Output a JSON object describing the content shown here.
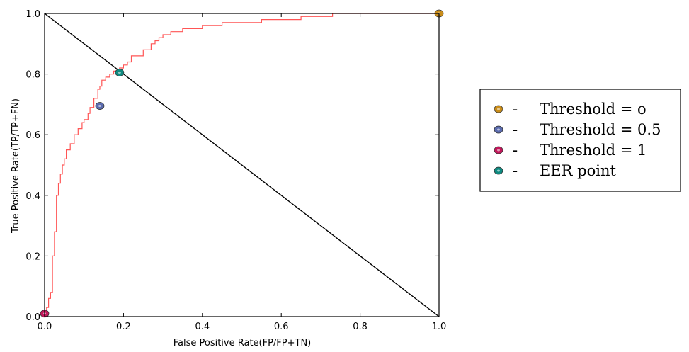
{
  "chart_data": {
    "type": "line",
    "title": "",
    "xlabel": "False Positive Rate(FP/FP+TN)",
    "ylabel": "True Positive Rate(TP/TP+FN)",
    "xlim": [
      0.0,
      1.0
    ],
    "ylim": [
      0.0,
      1.0
    ],
    "xticks": [
      "0.0",
      "0.2",
      "0.4",
      "0.6",
      "0.8",
      "1.0"
    ],
    "yticks": [
      "0.0",
      "0.2",
      "0.4",
      "0.6",
      "0.8",
      "1.0"
    ],
    "grid": false,
    "series": [
      {
        "color": "#ff5555",
        "x": [
          0.0,
          0.005,
          0.005,
          0.01,
          0.01,
          0.015,
          0.015,
          0.02,
          0.02,
          0.025,
          0.025,
          0.03,
          0.03,
          0.035,
          0.035,
          0.04,
          0.04,
          0.045,
          0.045,
          0.05,
          0.05,
          0.055,
          0.055,
          0.06,
          0.06,
          0.065,
          0.065,
          0.075,
          0.075,
          0.085,
          0.085,
          0.095,
          0.095,
          0.1,
          0.1,
          0.11,
          0.11,
          0.115,
          0.115,
          0.125,
          0.125,
          0.135,
          0.135,
          0.14,
          0.14,
          0.145,
          0.145,
          0.155,
          0.155,
          0.165,
          0.165,
          0.175,
          0.175,
          0.19,
          0.19,
          0.2,
          0.2,
          0.21,
          0.21,
          0.22,
          0.22,
          0.25,
          0.25,
          0.27,
          0.27,
          0.28,
          0.28,
          0.29,
          0.29,
          0.3,
          0.3,
          0.32,
          0.32,
          0.35,
          0.35,
          0.4,
          0.4,
          0.45,
          0.45,
          0.5,
          0.5,
          0.55,
          0.55,
          0.6,
          0.6,
          0.65,
          0.65,
          0.7,
          0.7,
          0.73,
          0.73,
          0.76,
          0.76,
          0.78,
          0.78,
          0.85,
          0.85,
          0.9,
          0.9,
          1.0
        ],
        "y": [
          0.0,
          0.0,
          0.03,
          0.03,
          0.06,
          0.06,
          0.08,
          0.08,
          0.2,
          0.2,
          0.28,
          0.28,
          0.4,
          0.4,
          0.44,
          0.44,
          0.47,
          0.47,
          0.5,
          0.5,
          0.52,
          0.52,
          0.55,
          0.55,
          0.55,
          0.55,
          0.57,
          0.57,
          0.6,
          0.6,
          0.62,
          0.62,
          0.64,
          0.64,
          0.65,
          0.65,
          0.67,
          0.67,
          0.69,
          0.69,
          0.72,
          0.72,
          0.75,
          0.75,
          0.76,
          0.76,
          0.78,
          0.78,
          0.79,
          0.79,
          0.8,
          0.8,
          0.81,
          0.81,
          0.82,
          0.82,
          0.83,
          0.83,
          0.84,
          0.84,
          0.86,
          0.86,
          0.88,
          0.88,
          0.9,
          0.9,
          0.91,
          0.91,
          0.92,
          0.92,
          0.93,
          0.93,
          0.94,
          0.94,
          0.95,
          0.95,
          0.96,
          0.96,
          0.97,
          0.97,
          0.97,
          0.97,
          0.98,
          0.98,
          0.98,
          0.98,
          0.99,
          0.99,
          0.99,
          0.99,
          1.0,
          1.0,
          1.0,
          1.0,
          1.0,
          1.0,
          1.0,
          1.0,
          1.0,
          1.0
        ]
      },
      {
        "color": "#000000",
        "x": [
          0.0,
          1.0
        ],
        "y": [
          1.0,
          0.0
        ]
      }
    ],
    "points": [
      {
        "label": "Threshold = 0",
        "x": 1.0,
        "y": 1.0,
        "color": "#c98d1a"
      },
      {
        "label": "Threshold = 0.5",
        "x": 0.14,
        "y": 0.695,
        "color": "#5b6bae"
      },
      {
        "label": "Threshold = 1",
        "x": 0.0,
        "y": 0.01,
        "color": "#c2185b"
      },
      {
        "label": "EER point",
        "x": 0.19,
        "y": 0.805,
        "color": "#0f8a80"
      }
    ],
    "legend": {
      "position": "right",
      "dash": "-",
      "entries": [
        "Threshold = o",
        "Threshold = 0.5",
        "Threshold = 1",
        "EER point"
      ]
    }
  }
}
